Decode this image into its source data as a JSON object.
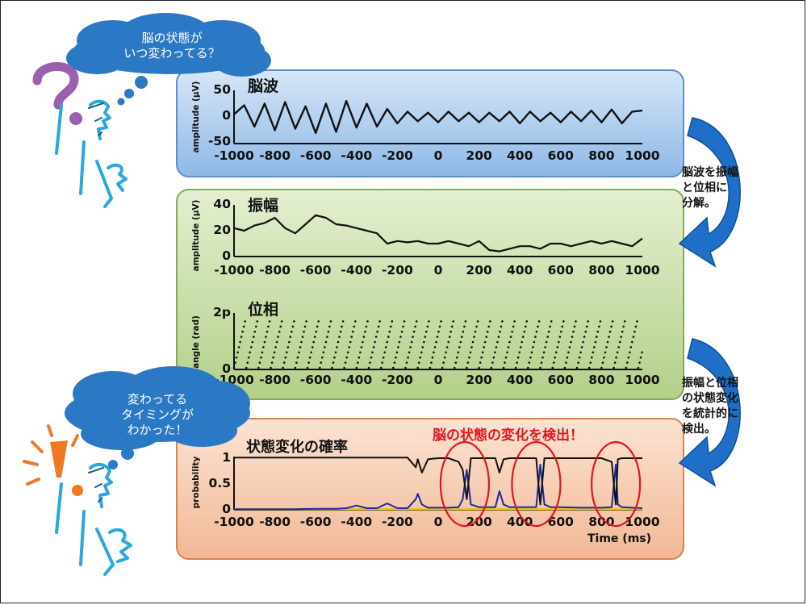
{
  "clouds": {
    "top": "脳の状態が\nいつ変わってる？",
    "bottom": "変わってる\nタイミングが\nわかった！"
  },
  "side_notes": {
    "decompose": "脳波を振幅\nと位相に\n分解。",
    "detect": "振幅と位相\nの状態変化\nを統計的に\n検出。"
  },
  "detect_label": "脳の状態の変化を検出！",
  "x_ticks": [
    "-1000",
    "-800",
    "-600",
    "-400",
    "-200",
    "0",
    "200",
    "400",
    "600",
    "800",
    "1000"
  ],
  "panels": {
    "eeg": {
      "title": "脳波",
      "ylabel": "amplitude (μV)",
      "yticks": [
        "50",
        "0",
        "-50"
      ]
    },
    "amplitude": {
      "title": "振幅",
      "ylabel": "amplitude (μV)",
      "yticks": [
        "40",
        "20",
        "0"
      ]
    },
    "phase": {
      "title": "位相",
      "ylabel": "angle (rad)",
      "yticks": [
        "2p",
        "0"
      ]
    },
    "probability": {
      "title": "状態変化の確率",
      "ylabel": "probability",
      "yticks": [
        "1",
        "0.5",
        "0"
      ],
      "xlabel": "Time (ms)"
    }
  },
  "colors": {
    "wave_panel": "#8fb8e6",
    "amp_panel": "#b3d08a",
    "prob_panel": "#f2b896",
    "arrow": "#1f6fc8",
    "cloud": "#2b79c4",
    "detect_red": "#e0161d",
    "prob_black": "#111111",
    "prob_blue": "#1a2aa0",
    "prob_yellow": "#f0c020",
    "person_cyan": "#29a8e0",
    "question_purple": "#9b5fb0",
    "exclaim_orange": "#f07820"
  },
  "chart_data": [
    {
      "type": "line",
      "title": "脳波",
      "ylabel": "amplitude (μV)",
      "xlim": [
        -1000,
        1000
      ],
      "ylim": [
        -50,
        50
      ],
      "x": [
        -1000,
        -950,
        -900,
        -850,
        -800,
        -750,
        -700,
        -650,
        -600,
        -550,
        -500,
        -450,
        -400,
        -350,
        -300,
        -250,
        -200,
        -150,
        -100,
        -50,
        0,
        50,
        100,
        150,
        200,
        250,
        300,
        350,
        400,
        450,
        500,
        550,
        600,
        650,
        700,
        750,
        800,
        850,
        900,
        950,
        1000
      ],
      "series": [
        {
          "values": [
            5,
            22,
            -18,
            25,
            -25,
            28,
            -22,
            20,
            -30,
            25,
            -28,
            30,
            -20,
            25,
            -18,
            15,
            -12,
            10,
            -8,
            8,
            -10,
            10,
            -8,
            8,
            -10,
            8,
            -8,
            10,
            -12,
            10,
            -8,
            8,
            -10,
            10,
            -8,
            12,
            -10,
            14,
            -12,
            10,
            12
          ]
        }
      ]
    },
    {
      "type": "line",
      "title": "振幅",
      "ylabel": "amplitude (μV)",
      "xlim": [
        -1000,
        1000
      ],
      "ylim": [
        0,
        40
      ],
      "x": [
        -1000,
        -950,
        -900,
        -850,
        -800,
        -750,
        -700,
        -650,
        -600,
        -550,
        -500,
        -450,
        -400,
        -350,
        -300,
        -250,
        -200,
        -150,
        -100,
        -50,
        0,
        50,
        100,
        150,
        200,
        250,
        300,
        350,
        400,
        450,
        500,
        550,
        600,
        650,
        700,
        750,
        800,
        850,
        900,
        950,
        1000
      ],
      "series": [
        {
          "values": [
            22,
            20,
            24,
            26,
            30,
            22,
            18,
            25,
            32,
            30,
            25,
            24,
            22,
            20,
            18,
            10,
            12,
            11,
            12,
            10,
            10,
            12,
            10,
            8,
            12,
            5,
            4,
            6,
            8,
            8,
            6,
            10,
            10,
            8,
            10,
            12,
            10,
            12,
            10,
            8,
            14
          ]
        }
      ]
    },
    {
      "type": "scatter",
      "title": "位相",
      "ylabel": "angle (rad)",
      "xlim": [
        -1000,
        1000
      ],
      "ylim": [
        0,
        6.283
      ],
      "note": "sawtooth phase, one 0→2π cycle roughly every 60 ms"
    },
    {
      "type": "line",
      "title": "状態変化の確率",
      "xlabel": "Time (ms)",
      "ylabel": "probability",
      "xlim": [
        -1000,
        1000
      ],
      "ylim": [
        0,
        1
      ],
      "x": [
        -1000,
        -900,
        -800,
        -700,
        -600,
        -500,
        -450,
        -400,
        -350,
        -300,
        -250,
        -200,
        -150,
        -110,
        -100,
        -80,
        -50,
        0,
        50,
        100,
        120,
        140,
        160,
        200,
        250,
        280,
        300,
        320,
        350,
        400,
        450,
        480,
        500,
        520,
        550,
        600,
        700,
        800,
        850,
        870,
        880,
        900,
        950,
        1000
      ],
      "series": [
        {
          "name": "black",
          "values": [
            0.98,
            0.98,
            0.98,
            0.98,
            0.98,
            0.98,
            0.98,
            0.98,
            0.98,
            0.98,
            0.98,
            0.98,
            0.98,
            0.8,
            0.95,
            0.7,
            0.95,
            0.97,
            0.97,
            0.9,
            0.75,
            0.2,
            0.97,
            0.97,
            0.97,
            0.97,
            0.7,
            0.95,
            0.97,
            0.97,
            0.97,
            0.97,
            0.1,
            0.97,
            0.97,
            0.97,
            0.97,
            0.97,
            0.9,
            0.1,
            0.95,
            0.97,
            0.97,
            0.97
          ]
        },
        {
          "name": "blue",
          "values": [
            0.01,
            0.01,
            0.01,
            0.01,
            0.02,
            0.02,
            0.03,
            0.08,
            0.03,
            0.03,
            0.12,
            0.03,
            0.03,
            0.2,
            0.3,
            0.1,
            0.04,
            0.04,
            0.04,
            0.05,
            0.2,
            0.75,
            0.1,
            0.05,
            0.05,
            0.05,
            0.35,
            0.1,
            0.05,
            0.05,
            0.05,
            0.05,
            0.85,
            0.1,
            0.05,
            0.05,
            0.04,
            0.04,
            0.05,
            0.85,
            0.1,
            0.05,
            0.04,
            0.03
          ]
        },
        {
          "name": "yellow",
          "values": [
            0.01,
            0.01,
            0.01,
            0.01,
            0.01,
            0.01,
            0.01,
            0.01,
            0.01,
            0.01,
            0.01,
            0.01,
            0.01,
            0.01,
            0.01,
            0.01,
            0.01,
            0.01,
            0.01,
            0.01,
            0.01,
            0.01,
            0.01,
            0.01,
            0.01,
            0.01,
            0.01,
            0.01,
            0.01,
            0.01,
            0.01,
            0.01,
            0.01,
            0.01,
            0.01,
            0.01,
            0.01,
            0.01,
            0.01,
            0.01,
            0.01,
            0.01,
            0.01,
            0.01
          ]
        }
      ],
      "highlight_ellipses_ms": [
        130,
        480,
        870
      ]
    }
  ]
}
